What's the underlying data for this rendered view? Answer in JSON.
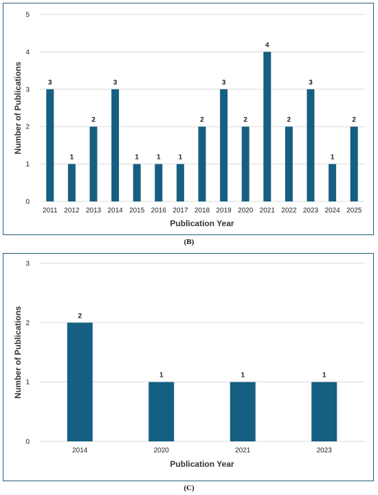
{
  "captions": {
    "b": "(B)",
    "c": "(C)"
  },
  "colors": {
    "bar": "#155f82",
    "grid": "#d9d9d9",
    "border": "#1f5a78"
  },
  "chart_data": [
    {
      "type": "bar",
      "categories": [
        "2011",
        "2012",
        "2013",
        "2014",
        "2015",
        "2016",
        "2017",
        "2018",
        "2019",
        "2020",
        "2021",
        "2022",
        "2023",
        "2024",
        "2025"
      ],
      "values": [
        3,
        1,
        2,
        3,
        1,
        1,
        1,
        2,
        3,
        2,
        4,
        2,
        3,
        1,
        2
      ],
      "xlabel": "Publication Year",
      "ylabel": "Number of Publications",
      "ylim": [
        0,
        5
      ],
      "yticks": [
        "0",
        "1",
        "2",
        "3",
        "4",
        "5"
      ],
      "grid": true
    },
    {
      "type": "bar",
      "categories": [
        "2014",
        "2020",
        "2021",
        "2023"
      ],
      "values": [
        2,
        1,
        1,
        1
      ],
      "xlabel": "Publication Year",
      "ylabel": "Number of Publications",
      "ylim": [
        0,
        3
      ],
      "yticks": [
        "0",
        "1",
        "2",
        "3"
      ],
      "grid": true
    }
  ]
}
